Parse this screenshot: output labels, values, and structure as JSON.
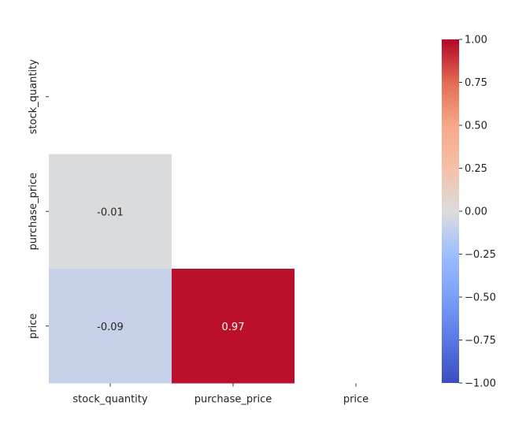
{
  "chart_data": {
    "type": "heatmap",
    "title": "",
    "x_categories": [
      "stock_quantity",
      "purchase_price",
      "price"
    ],
    "y_categories": [
      "stock_quantity",
      "purchase_price",
      "price"
    ],
    "mask": "upper_triangle_and_diagonal",
    "cells": [
      {
        "row": "purchase_price",
        "col": "stock_quantity",
        "value": -0.01,
        "label": "-0.01"
      },
      {
        "row": "price",
        "col": "stock_quantity",
        "value": -0.09,
        "label": "-0.09"
      },
      {
        "row": "price",
        "col": "purchase_price",
        "value": 0.97,
        "label": "0.97"
      }
    ],
    "colorbar": {
      "colormap": "coolwarm",
      "vmin": -1.0,
      "vmax": 1.0,
      "ticks": [
        "1.00",
        "0.75",
        "0.50",
        "0.25",
        "0.00",
        "−0.25",
        "−0.50",
        "−0.75",
        "−1.00"
      ],
      "tick_values": [
        1.0,
        0.75,
        0.5,
        0.25,
        0.0,
        -0.25,
        -0.5,
        -0.75,
        -1.0
      ]
    }
  }
}
